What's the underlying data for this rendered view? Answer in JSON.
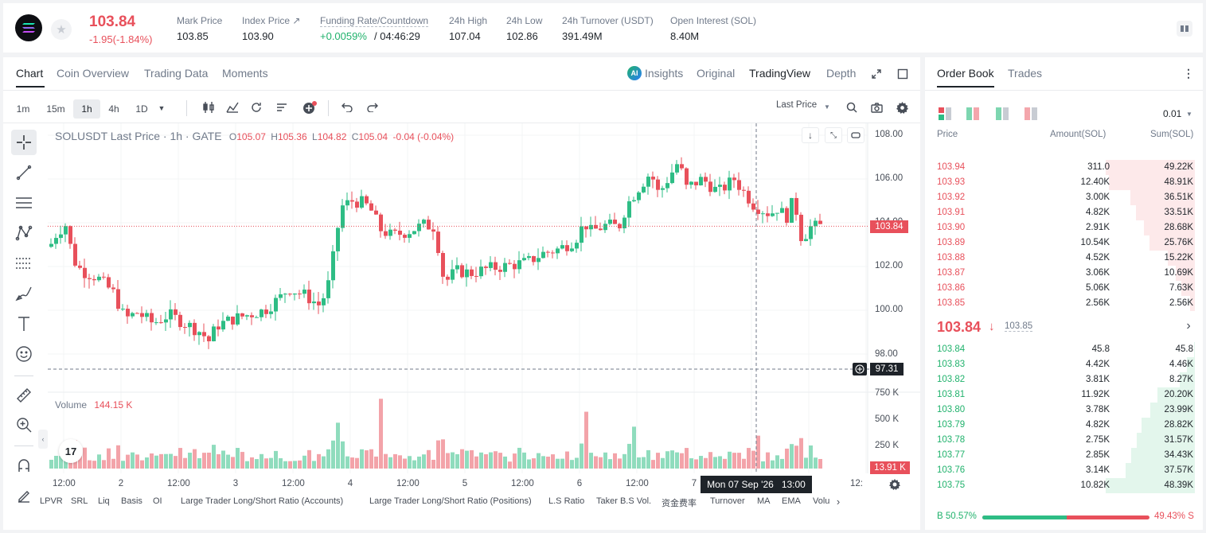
{
  "header": {
    "price": "103.84",
    "change": "-1.95(-1.84%)",
    "stats": [
      {
        "label": "Mark Price",
        "value": "103.85"
      },
      {
        "label": "Index Price ↗",
        "value": "103.90"
      },
      {
        "label": "Funding Rate/Countdown",
        "value_a": "+0.0059%",
        "value_b": "/ 04:46:29"
      },
      {
        "label": "24h High",
        "value": "107.04"
      },
      {
        "label": "24h Low",
        "value": "102.86"
      },
      {
        "label": "24h Turnover (USDT)",
        "value": "391.49M"
      },
      {
        "label": "Open Interest (SOL)",
        "value": "8.40M"
      }
    ]
  },
  "chart_tabs": [
    "Chart",
    "Coin Overview",
    "Trading Data",
    "Moments"
  ],
  "view_tabs": {
    "insights": "Insights",
    "original": "Original",
    "tradingview": "TradingView",
    "depth": "Depth"
  },
  "timeframes": [
    "1m",
    "15m",
    "1h",
    "4h",
    "1D"
  ],
  "price_source": "Last Price",
  "legend": {
    "symbol": "SOLUSDT Last Price · 1h · GATE",
    "o_label": "O",
    "o": "105.07",
    "h_label": "H",
    "h": "105.36",
    "l_label": "L",
    "l": "104.82",
    "c_label": "C",
    "c": "105.04",
    "chg": "-0.04 (-0.04%)"
  },
  "volume_legend": {
    "label": "Volume",
    "value": "144.15 K"
  },
  "price_axis": [
    "108.00",
    "106.00",
    "104.00",
    "102.00",
    "100.00",
    "98.00"
  ],
  "volume_axis": [
    "750 K",
    "500 K",
    "250 K"
  ],
  "current_price_tag": "103.84",
  "crosshair_price_tag": "97.31",
  "volume_tag": "13.91 K",
  "time_axis": [
    "12:00",
    "2",
    "12:00",
    "3",
    "12:00",
    "4",
    "12:00",
    "5",
    "12:00",
    "6",
    "12:00",
    "7",
    "12:"
  ],
  "crosshair_time": "Mon 07 Sep '26   13:00",
  "bottom_tabs": [
    "LPVR",
    "SRL",
    "Liq",
    "Basis",
    "OI",
    "Large Trader Long/Short Ratio (Accounts)",
    "Large Trader Long/Short Ratio (Positions)",
    "L.S Ratio",
    "Taker B.S Vol.",
    "资金费率",
    "Turnover",
    "MA",
    "EMA",
    "Volu"
  ],
  "orderbook": {
    "tabs": [
      "Order Book",
      "Trades"
    ],
    "precision": "0.01",
    "headers": [
      "Price",
      "Amount(SOL)",
      "Sum(SOL)"
    ],
    "asks": [
      {
        "price": "103.94",
        "amount": "311.0",
        "sum": "49.22K",
        "depth": 1.0
      },
      {
        "price": "103.93",
        "amount": "12.40K",
        "sum": "48.91K",
        "depth": 0.96
      },
      {
        "price": "103.92",
        "amount": "3.00K",
        "sum": "36.51K",
        "depth": 0.72
      },
      {
        "price": "103.91",
        "amount": "4.82K",
        "sum": "33.51K",
        "depth": 0.66
      },
      {
        "price": "103.90",
        "amount": "2.91K",
        "sum": "28.68K",
        "depth": 0.57
      },
      {
        "price": "103.89",
        "amount": "10.54K",
        "sum": "25.76K",
        "depth": 0.51
      },
      {
        "price": "103.88",
        "amount": "4.52K",
        "sum": "15.22K",
        "depth": 0.3
      },
      {
        "price": "103.87",
        "amount": "3.06K",
        "sum": "10.69K",
        "depth": 0.21
      },
      {
        "price": "103.86",
        "amount": "5.06K",
        "sum": "7.63K",
        "depth": 0.15
      },
      {
        "price": "103.85",
        "amount": "2.56K",
        "sum": "2.56K",
        "depth": 0.05
      }
    ],
    "last_price": "103.84",
    "mark_price": "103.85",
    "bids": [
      {
        "price": "103.84",
        "amount": "45.8",
        "sum": "45.8",
        "depth": 0.01
      },
      {
        "price": "103.83",
        "amount": "4.42K",
        "sum": "4.46K",
        "depth": 0.09
      },
      {
        "price": "103.82",
        "amount": "3.81K",
        "sum": "8.27K",
        "depth": 0.17
      },
      {
        "price": "103.81",
        "amount": "11.92K",
        "sum": "20.20K",
        "depth": 0.42
      },
      {
        "price": "103.80",
        "amount": "3.78K",
        "sum": "23.99K",
        "depth": 0.5
      },
      {
        "price": "103.79",
        "amount": "4.82K",
        "sum": "28.82K",
        "depth": 0.6
      },
      {
        "price": "103.78",
        "amount": "2.75K",
        "sum": "31.57K",
        "depth": 0.65
      },
      {
        "price": "103.77",
        "amount": "2.85K",
        "sum": "34.43K",
        "depth": 0.71
      },
      {
        "price": "103.76",
        "amount": "3.14K",
        "sum": "37.57K",
        "depth": 0.78
      },
      {
        "price": "103.75",
        "amount": "10.82K",
        "sum": "48.39K",
        "depth": 1.0
      }
    ],
    "buy_ratio": "B 50.57%",
    "sell_ratio": "49.43% S",
    "buy_fraction": 0.5057
  },
  "colors": {
    "up": "#2ebd85",
    "down": "#e8505b",
    "accent": "#20b26c"
  }
}
